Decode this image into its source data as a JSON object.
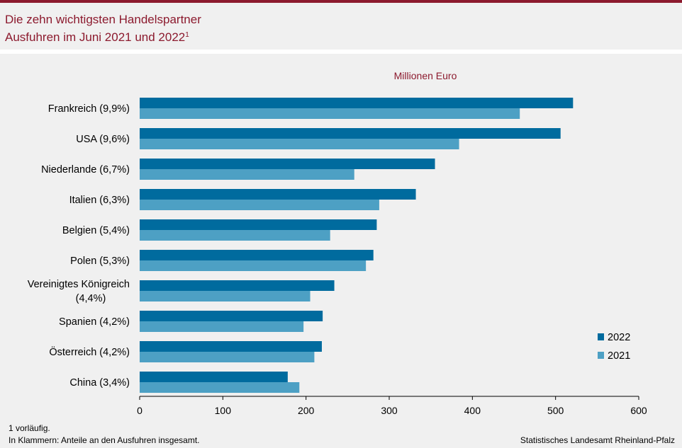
{
  "header": {
    "title_line1": "Die zehn wichtigsten Handelspartner",
    "title_line2": "Ausfuhren im Juni 2021 und 2022",
    "title_footnote_mark": "1"
  },
  "footer": {
    "footnote1": "1 vorläufig.",
    "footnote2": "In Klammern: Anteile an den Ausfuhren insgesamt.",
    "source": "Statistisches Landesamt Rheinland-Pfalz"
  },
  "colors": {
    "accent": "#8c1a2e",
    "series_2022": "#006b9e",
    "series_2021": "#4da0c4",
    "background": "#f0f0f0"
  },
  "chart_data": {
    "type": "bar",
    "orientation": "horizontal",
    "unit_label": "Millionen  Euro",
    "categories": [
      [
        "Frankreich (9,9%)"
      ],
      [
        "USA (9,6%)"
      ],
      [
        "Niederlande (6,7%)"
      ],
      [
        "Italien (6,3%)"
      ],
      [
        "Belgien (5,4%)"
      ],
      [
        "Polen (5,3%)"
      ],
      [
        "Vereinigtes Königreich",
        "(4,4%)"
      ],
      [
        "Spanien (4,2%)"
      ],
      [
        "Österreich (4,2%)"
      ],
      [
        "China (3,4%)"
      ]
    ],
    "series": [
      {
        "name": "2022",
        "values": [
          521,
          506,
          355,
          332,
          285,
          281,
          234,
          220,
          219,
          178
        ]
      },
      {
        "name": "2021",
        "values": [
          457,
          384,
          258,
          288,
          229,
          272,
          205,
          197,
          210,
          192
        ]
      }
    ],
    "xlim": [
      0,
      600
    ],
    "xticks": [
      0,
      100,
      200,
      300,
      400,
      500,
      600
    ],
    "grid": false,
    "legend_position": "bottom-right"
  }
}
